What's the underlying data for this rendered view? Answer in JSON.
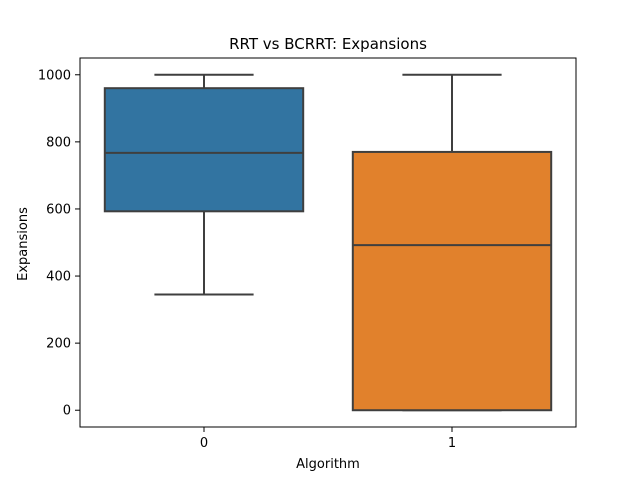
{
  "chart_data": {
    "type": "box",
    "title": "RRT vs BCRRT: Expansions",
    "xlabel": "Algorithm",
    "ylabel": "Expansions",
    "ylim": [
      -50,
      1050
    ],
    "yticks": [
      0,
      200,
      400,
      600,
      800,
      1000
    ],
    "grid": false,
    "categories": [
      "0",
      "1"
    ],
    "boxes": [
      {
        "category": "0",
        "whisker_low": 345,
        "q1": 593,
        "median": 767,
        "q3": 960,
        "whisker_high": 1000,
        "color": "#3274a1"
      },
      {
        "category": "1",
        "whisker_low": 0,
        "q1": 0,
        "median": 492,
        "q3": 770,
        "whisker_high": 1000,
        "color": "#e1812c"
      }
    ]
  }
}
